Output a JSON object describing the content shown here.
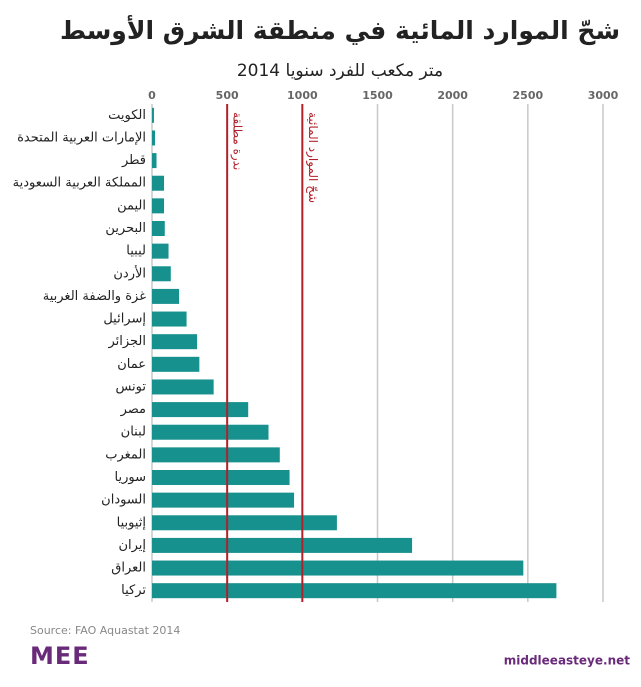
{
  "chart_data": {
    "type": "barh",
    "title": "شحّ الموارد المائية في منطقة الشرق الأوسط",
    "subtitle": "متر مكعب للفرد سنويا 2014",
    "categories": [
      "الكويت",
      "الإمارات العربية المتحدة",
      "قطر",
      "المملكة العربية السعودية",
      "اليمن",
      "البحرين",
      "ليبيا",
      "الأردن",
      "غزة والضفة الغربية",
      "إسرائيل",
      "الجزائر",
      "عمان",
      "تونس",
      "مصر",
      "لبنان",
      "المغرب",
      "سوريا",
      "السودان",
      "إثيوبيا",
      "إيران",
      "العراق",
      "تركيا"
    ],
    "values": [
      13,
      20,
      30,
      80,
      80,
      85,
      110,
      125,
      180,
      230,
      300,
      315,
      410,
      640,
      775,
      850,
      915,
      945,
      1230,
      1730,
      2470,
      2690
    ],
    "color": "#17918e",
    "xlim": [
      0,
      3000
    ],
    "xticks": [
      0,
      500,
      1000,
      1500,
      2000,
      2500,
      3000
    ],
    "grid": true,
    "thresholds": [
      {
        "value": 500,
        "label": "ندرة مطلقة",
        "color": "#b3202a"
      },
      {
        "value": 1000,
        "label": "شحّ الموارد المائية",
        "color": "#b3202a"
      }
    ],
    "source": "Source: FAO Aquastat 2014",
    "logo": "MEE",
    "website": "middleeasteye.net"
  }
}
